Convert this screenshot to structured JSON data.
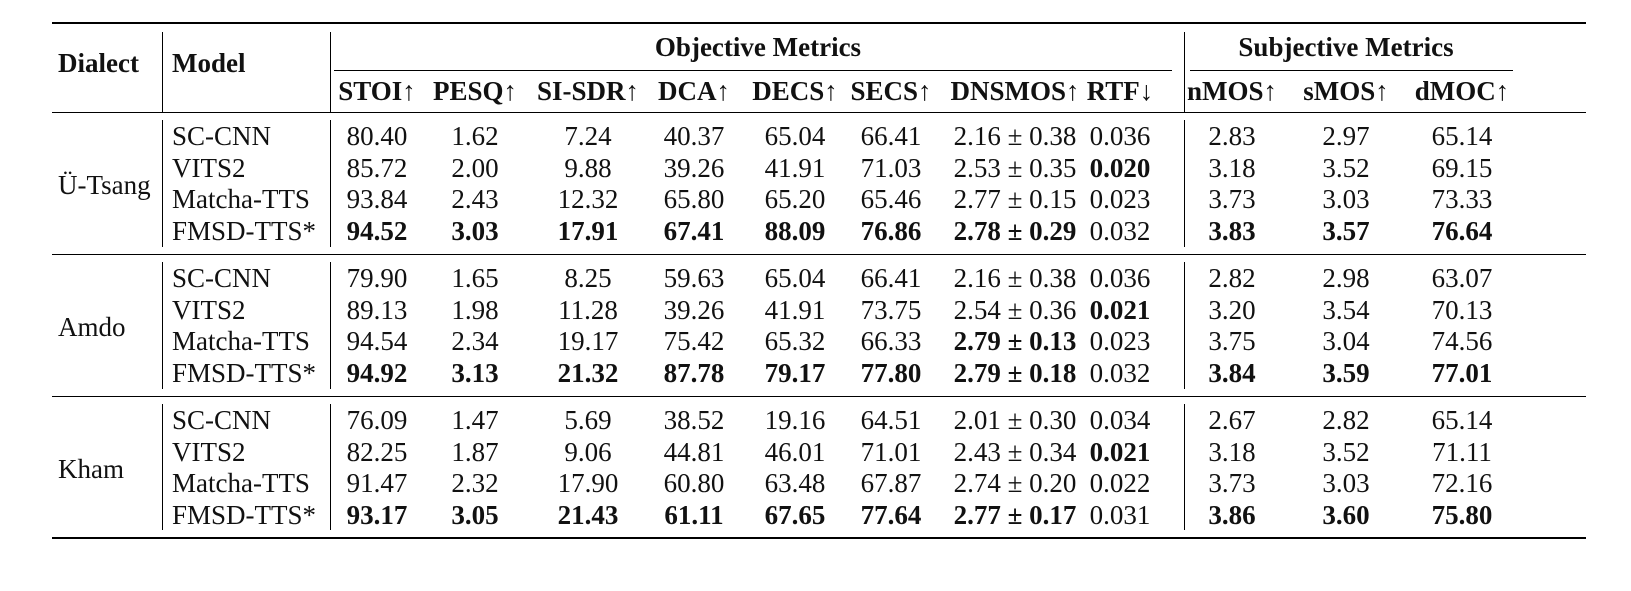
{
  "table": {
    "header": {
      "dialect": "Dialect",
      "model": "Model",
      "objective_group": "Objective Metrics",
      "subjective_group": "Subjective Metrics",
      "columns": [
        "STOI↑",
        "PESQ↑",
        "SI-SDR↑",
        "DCA↑",
        "DECS↑",
        "SECS↑",
        "DNSMOS↑",
        "RTF↓",
        "nMOS↑",
        "sMOS↑",
        "dMOC↑"
      ]
    },
    "groups": [
      {
        "dialect": "Ü-Tsang",
        "rows": [
          {
            "model": "SC-CNN",
            "values": [
              "80.40",
              "1.62",
              "7.24",
              "40.37",
              "65.04",
              "66.41",
              "2.16 ± 0.38",
              "0.036",
              "2.83",
              "2.97",
              "65.14"
            ],
            "bold": []
          },
          {
            "model": "VITS2",
            "values": [
              "85.72",
              "2.00",
              "9.88",
              "39.26",
              "41.91",
              "71.03",
              "2.53 ± 0.35",
              "0.020",
              "3.18",
              "3.52",
              "69.15"
            ],
            "bold": [
              7
            ]
          },
          {
            "model": "Matcha-TTS",
            "values": [
              "93.84",
              "2.43",
              "12.32",
              "65.80",
              "65.20",
              "65.46",
              "2.77 ± 0.15",
              "0.023",
              "3.73",
              "3.03",
              "73.33"
            ],
            "bold": []
          },
          {
            "model": "FMSD-TTS*",
            "values": [
              "94.52",
              "3.03",
              "17.91",
              "67.41",
              "88.09",
              "76.86",
              "2.78 ± 0.29",
              "0.032",
              "3.83",
              "3.57",
              "76.64"
            ],
            "bold": [
              0,
              1,
              2,
              3,
              4,
              5,
              6,
              8,
              9,
              10
            ]
          }
        ]
      },
      {
        "dialect": "Amdo",
        "rows": [
          {
            "model": "SC-CNN",
            "values": [
              "79.90",
              "1.65",
              "8.25",
              "59.63",
              "65.04",
              "66.41",
              "2.16 ± 0.38",
              "0.036",
              "2.82",
              "2.98",
              "63.07"
            ],
            "bold": []
          },
          {
            "model": "VITS2",
            "values": [
              "89.13",
              "1.98",
              "11.28",
              "39.26",
              "41.91",
              "73.75",
              "2.54 ± 0.36",
              "0.021",
              "3.20",
              "3.54",
              "70.13"
            ],
            "bold": [
              7
            ]
          },
          {
            "model": "Matcha-TTS",
            "values": [
              "94.54",
              "2.34",
              "19.17",
              "75.42",
              "65.32",
              "66.33",
              "2.79 ± 0.13",
              "0.023",
              "3.75",
              "3.04",
              "74.56"
            ],
            "bold": [
              6
            ]
          },
          {
            "model": "FMSD-TTS*",
            "values": [
              "94.92",
              "3.13",
              "21.32",
              "87.78",
              "79.17",
              "77.80",
              "2.79 ± 0.18",
              "0.032",
              "3.84",
              "3.59",
              "77.01"
            ],
            "bold": [
              0,
              1,
              2,
              3,
              4,
              5,
              6,
              8,
              9,
              10
            ]
          }
        ]
      },
      {
        "dialect": "Kham",
        "rows": [
          {
            "model": "SC-CNN",
            "values": [
              "76.09",
              "1.47",
              "5.69",
              "38.52",
              "19.16",
              "64.51",
              "2.01 ± 0.30",
              "0.034",
              "2.67",
              "2.82",
              "65.14"
            ],
            "bold": []
          },
          {
            "model": "VITS2",
            "values": [
              "82.25",
              "1.87",
              "9.06",
              "44.81",
              "46.01",
              "71.01",
              "2.43 ± 0.34",
              "0.021",
              "3.18",
              "3.52",
              "71.11"
            ],
            "bold": [
              7
            ]
          },
          {
            "model": "Matcha-TTS",
            "values": [
              "91.47",
              "2.32",
              "17.90",
              "60.80",
              "63.48",
              "67.87",
              "2.74 ± 0.20",
              "0.022",
              "3.73",
              "3.03",
              "72.16"
            ],
            "bold": []
          },
          {
            "model": "FMSD-TTS*",
            "values": [
              "93.17",
              "3.05",
              "21.43",
              "61.11",
              "67.65",
              "77.64",
              "2.77 ± 0.17",
              "0.031",
              "3.86",
              "3.60",
              "75.80"
            ],
            "bold": [
              0,
              1,
              2,
              3,
              4,
              5,
              6,
              8,
              9,
              10
            ]
          }
        ]
      }
    ]
  }
}
